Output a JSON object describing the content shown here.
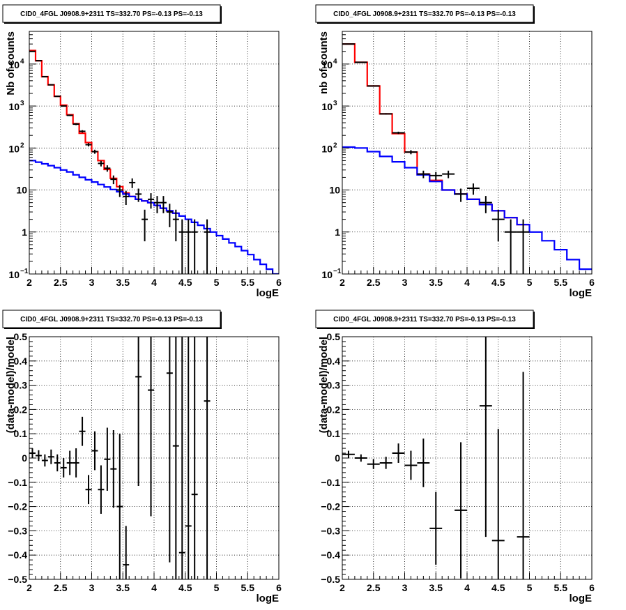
{
  "colors": {
    "total_model": "#ff0000",
    "component_model": "#0000ff",
    "data": "#000000"
  },
  "chart_data": [
    {
      "panel": "top-left",
      "type": "line",
      "title": "CID0_4FGL J0908.9+2311 TS=332.70 PS=-0.13 PS=-0.13",
      "xlabel": "logE",
      "ylabel": "Nb of counts",
      "xlim": [
        2,
        6
      ],
      "ylim": [
        0.1,
        60000
      ],
      "log_y": true,
      "grid": true,
      "xticks": [
        "2",
        "2.5",
        "3",
        "3.5",
        "4",
        "4.5",
        "5",
        "5.5",
        "6"
      ],
      "yticks": [
        {
          "v": 0.1,
          "label": "10",
          "exp": "−1"
        },
        {
          "v": 1,
          "label": "1",
          "exp": ""
        },
        {
          "v": 10,
          "label": "10",
          "exp": ""
        },
        {
          "v": 100,
          "label": "10",
          "exp": "2"
        },
        {
          "v": 1000,
          "label": "10",
          "exp": "3"
        },
        {
          "v": 10000,
          "label": "10",
          "exp": "4"
        }
      ],
      "bin_edges": [
        2.0,
        2.1,
        2.2,
        2.3,
        2.4,
        2.5,
        2.6,
        2.7,
        2.8,
        2.9,
        3.0,
        3.1,
        3.2,
        3.3,
        3.4,
        3.5,
        3.6,
        3.7,
        3.8,
        3.9,
        4.0,
        4.1,
        4.2,
        4.3,
        4.4,
        4.5,
        4.6,
        4.7,
        4.8,
        4.9,
        5.0,
        5.1,
        5.2,
        5.3,
        5.4,
        5.5,
        5.6,
        5.7,
        5.8,
        5.9,
        6.0
      ],
      "series": [
        {
          "kind": "histogram",
          "color_key": "total_model",
          "values": [
            21000,
            12000,
            5000,
            3200,
            1700,
            1050,
            620,
            380,
            225,
            135,
            82,
            50,
            31,
            19,
            12,
            8.5,
            7,
            6,
            5.5,
            5,
            4.3,
            3.7,
            3.2,
            2.8
          ]
        },
        {
          "kind": "histogram",
          "color_key": "component_model",
          "values": [
            50,
            46,
            42,
            38,
            34,
            30,
            27,
            23,
            20,
            17.5,
            15.5,
            13.5,
            11.8,
            10.3,
            9.1,
            8,
            7,
            6,
            5.5,
            5,
            4.3,
            3.7,
            3.2,
            2.8,
            2.4,
            2.0,
            1.7,
            1.45,
            1.2,
            1.0,
            0.82,
            0.68,
            0.55,
            0.45,
            0.36,
            0.29,
            0.22,
            0.17,
            0.13,
            0.1
          ]
        },
        {
          "kind": "points",
          "color_key": "data",
          "x": [
            2.05,
            2.15,
            2.25,
            2.35,
            2.45,
            2.55,
            2.65,
            2.75,
            2.85,
            2.95,
            3.05,
            3.15,
            3.25,
            3.35,
            3.45,
            3.55,
            3.65,
            3.75,
            3.85,
            3.95,
            4.05,
            4.15,
            4.25,
            4.35,
            4.45,
            4.55,
            4.65,
            4.75,
            4.85
          ],
          "y": [
            20000,
            12000,
            5000,
            3200,
            1700,
            1000,
            600,
            370,
            250,
            120,
            82,
            43,
            33,
            18,
            10,
            7,
            15,
            8,
            2,
            6,
            5,
            5,
            3,
            2,
            1,
            1,
            1,
            0,
            1
          ],
          "yerr": [
            141,
            110,
            71,
            57,
            41,
            32,
            24,
            19,
            16,
            11,
            9,
            6.6,
            5.7,
            4.2,
            3.2,
            2.6,
            3.9,
            2.8,
            1.4,
            2.4,
            2.2,
            2.2,
            1.7,
            1.4,
            1,
            1,
            1,
            0,
            1
          ]
        }
      ]
    },
    {
      "panel": "top-right",
      "type": "line",
      "title": "CID0_4FGL J0908.9+2311 TS=332.70 PS=-0.13 PS=-0.13",
      "xlabel": "logE",
      "ylabel": "nb of counts",
      "xlim": [
        2,
        6
      ],
      "ylim": [
        0.1,
        60000
      ],
      "log_y": true,
      "grid": true,
      "xticks": [
        "2",
        "2.5",
        "3",
        "3.5",
        "4",
        "4.5",
        "5",
        "5.5",
        "6"
      ],
      "yticks": [
        {
          "v": 0.1,
          "label": "10",
          "exp": "−1"
        },
        {
          "v": 1,
          "label": "1",
          "exp": ""
        },
        {
          "v": 10,
          "label": "10",
          "exp": ""
        },
        {
          "v": 100,
          "label": "10",
          "exp": "2"
        },
        {
          "v": 1000,
          "label": "10",
          "exp": "3"
        },
        {
          "v": 10000,
          "label": "10",
          "exp": "4"
        }
      ],
      "bin_edges": [
        2.0,
        2.2,
        2.4,
        2.6,
        2.8,
        3.0,
        3.2,
        3.4,
        3.6,
        3.8,
        4.0,
        4.2,
        4.4,
        4.6,
        4.8,
        5.0,
        5.2,
        5.4,
        5.6,
        5.8,
        6.0
      ],
      "series": [
        {
          "kind": "histogram",
          "color_key": "total_model",
          "values": [
            30000,
            11000,
            3000,
            650,
            220,
            80,
            24,
            17,
            10,
            8,
            6,
            4.5,
            3.2,
            2.2,
            1.5
          ]
        },
        {
          "kind": "histogram",
          "color_key": "component_model",
          "values": [
            105,
            100,
            82,
            63,
            47,
            34,
            23,
            16,
            10,
            8,
            6,
            4.5,
            3.2,
            2.2,
            1.5,
            1.0,
            0.62,
            0.38,
            0.22,
            0.13
          ]
        },
        {
          "kind": "points",
          "color_key": "data",
          "x": [
            2.1,
            2.3,
            2.5,
            2.7,
            2.9,
            3.1,
            3.3,
            3.5,
            3.7,
            3.9,
            4.1,
            4.3,
            4.5,
            4.7,
            4.9
          ],
          "y": [
            30000,
            11000,
            3000,
            650,
            230,
            80,
            24,
            22,
            24,
            8,
            11,
            5,
            2,
            1,
            1
          ],
          "yerr": [
            173,
            105,
            55,
            25,
            15,
            9,
            4.9,
            4.7,
            4.9,
            2.8,
            3.3,
            2.2,
            1.4,
            1,
            1
          ]
        }
      ]
    },
    {
      "panel": "bottom-left",
      "type": "scatter",
      "title": "CID0_4FGL J0908.9+2311 TS=332.70 PS=-0.13 PS=-0.13",
      "xlabel": "logE",
      "ylabel": "(data-model)/model",
      "xlim": [
        2,
        6
      ],
      "ylim": [
        -0.5,
        0.5
      ],
      "log_y": false,
      "grid": true,
      "xticks": [
        "2",
        "2.5",
        "3",
        "3.5",
        "4",
        "4.5",
        "5",
        "5.5",
        "6"
      ],
      "yticks": [
        {
          "v": -0.5,
          "label": "−0.5",
          "exp": ""
        },
        {
          "v": -0.4,
          "label": "−0.4",
          "exp": ""
        },
        {
          "v": -0.3,
          "label": "−0.3",
          "exp": ""
        },
        {
          "v": -0.2,
          "label": "−0.2",
          "exp": ""
        },
        {
          "v": -0.1,
          "label": "−0.1",
          "exp": ""
        },
        {
          "v": 0,
          "label": "0",
          "exp": ""
        },
        {
          "v": 0.1,
          "label": "0.1",
          "exp": ""
        },
        {
          "v": 0.2,
          "label": "0.2",
          "exp": ""
        },
        {
          "v": 0.3,
          "label": "0.3",
          "exp": ""
        },
        {
          "v": 0.4,
          "label": "0.4",
          "exp": ""
        },
        {
          "v": 0.5,
          "label": "0.5",
          "exp": ""
        }
      ],
      "xhalf": 0.05,
      "series": [
        {
          "kind": "points",
          "color_key": "data",
          "x": [
            2.05,
            2.15,
            2.25,
            2.35,
            2.45,
            2.55,
            2.65,
            2.75,
            2.85,
            2.95,
            3.05,
            3.15,
            3.25,
            3.35,
            3.45,
            3.55,
            3.75,
            3.95,
            4.25,
            4.35,
            4.45,
            4.55,
            4.65,
            4.85
          ],
          "y": [
            0.02,
            0.01,
            -0.01,
            0.005,
            -0.02,
            -0.04,
            -0.02,
            -0.02,
            0.11,
            -0.13,
            0.03,
            -0.13,
            -0.005,
            -0.045,
            -0.2,
            -0.44,
            0.335,
            0.28,
            0.35,
            0.05,
            -0.39,
            -0.28,
            -0.15,
            0.235
          ],
          "yerr": [
            0.02,
            0.022,
            0.025,
            0.03,
            0.035,
            0.04,
            0.05,
            0.06,
            0.06,
            0.06,
            0.08,
            0.1,
            0.13,
            0.16,
            0.3,
            0.16,
            0.45,
            0.52,
            0.78,
            0.8,
            1.0,
            1.0,
            1.1,
            1.0
          ]
        }
      ]
    },
    {
      "panel": "bottom-right",
      "type": "scatter",
      "title": "CID0_4FGL J0908.9+2311 TS=332.70 PS=-0.13 PS=-0.13",
      "xlabel": "logE",
      "ylabel": "(data-model)/model",
      "xlim": [
        2,
        6
      ],
      "ylim": [
        -0.5,
        0.5
      ],
      "log_y": false,
      "grid": true,
      "xticks": [
        "2",
        "2.5",
        "3",
        "3.5",
        "4",
        "4.5",
        "5",
        "5.5",
        "6"
      ],
      "yticks": [
        {
          "v": -0.5,
          "label": "−0.5",
          "exp": ""
        },
        {
          "v": -0.4,
          "label": "−0.4",
          "exp": ""
        },
        {
          "v": -0.3,
          "label": "−0.3",
          "exp": ""
        },
        {
          "v": -0.2,
          "label": "−0.2",
          "exp": ""
        },
        {
          "v": -0.1,
          "label": "−0.1",
          "exp": ""
        },
        {
          "v": 0,
          "label": "0",
          "exp": ""
        },
        {
          "v": 0.1,
          "label": "0.1",
          "exp": ""
        },
        {
          "v": 0.2,
          "label": "0.2",
          "exp": ""
        },
        {
          "v": 0.3,
          "label": "0.3",
          "exp": ""
        },
        {
          "v": 0.4,
          "label": "0.4",
          "exp": ""
        },
        {
          "v": 0.5,
          "label": "0.5",
          "exp": ""
        }
      ],
      "xhalf": 0.1,
      "series": [
        {
          "kind": "points",
          "color_key": "data",
          "x": [
            2.1,
            2.3,
            2.5,
            2.7,
            2.9,
            3.1,
            3.3,
            3.5,
            3.9,
            4.3,
            4.5,
            4.9
          ],
          "y": [
            0.015,
            0.0,
            -0.025,
            -0.02,
            0.02,
            -0.03,
            -0.02,
            -0.29,
            -0.215,
            0.215,
            -0.34,
            -0.325
          ],
          "yerr": [
            0.015,
            0.015,
            0.02,
            0.025,
            0.04,
            0.06,
            0.1,
            0.15,
            0.28,
            0.54,
            0.46,
            0.68
          ]
        }
      ]
    }
  ]
}
